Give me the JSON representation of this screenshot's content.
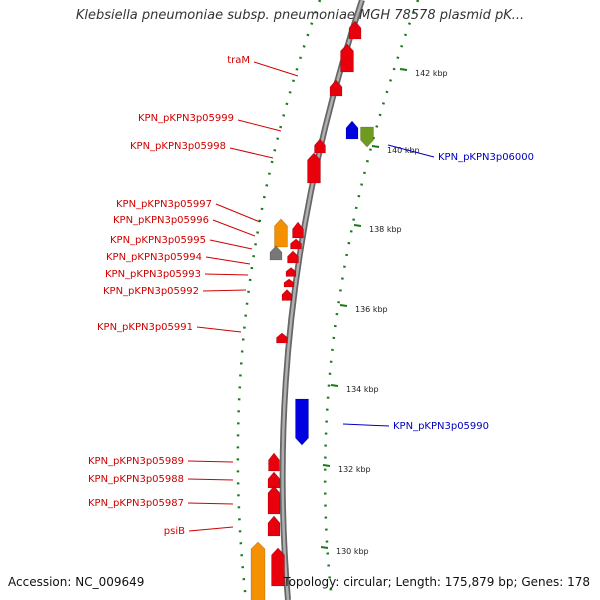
{
  "title": "Klebsiella pneumoniae subsp. pneumoniae MGH 78578 plasmid pK...",
  "footer": {
    "accession": "Accession: NC_009649",
    "summary": "Topology: circular; Length: 175,879 bp; Genes: 178"
  },
  "colors": {
    "forward_gene": "#e8000c",
    "reverse_gene": "#0000e0",
    "orange_gene": "#f59000",
    "green_gene": "#6f9a20",
    "gray_gene": "#777777",
    "backbone": "#888888",
    "tick": "#1a7a1a",
    "forward_label": "#d00000",
    "reverse_label": "#0000c0"
  },
  "position_ticks": [
    "142 kbp",
    "140 kbp",
    "138 kbp",
    "136 kbp",
    "134 kbp",
    "132 kbp",
    "130 kbp"
  ],
  "forward_labels": [
    "traM",
    "KPN_pKPN3p05999",
    "KPN_pKPN3p05998",
    "KPN_pKPN3p05997",
    "KPN_pKPN3p05996",
    "KPN_pKPN3p05995",
    "KPN_pKPN3p05994",
    "KPN_pKPN3p05993",
    "KPN_pKPN3p05992",
    "KPN_pKPN3p05991",
    "KPN_pKPN3p05989",
    "KPN_pKPN3p05988",
    "KPN_pKPN3p05987",
    "psiB"
  ],
  "reverse_labels": [
    "KPN_pKPN3p06000",
    "KPN_pKPN3p05990"
  ]
}
